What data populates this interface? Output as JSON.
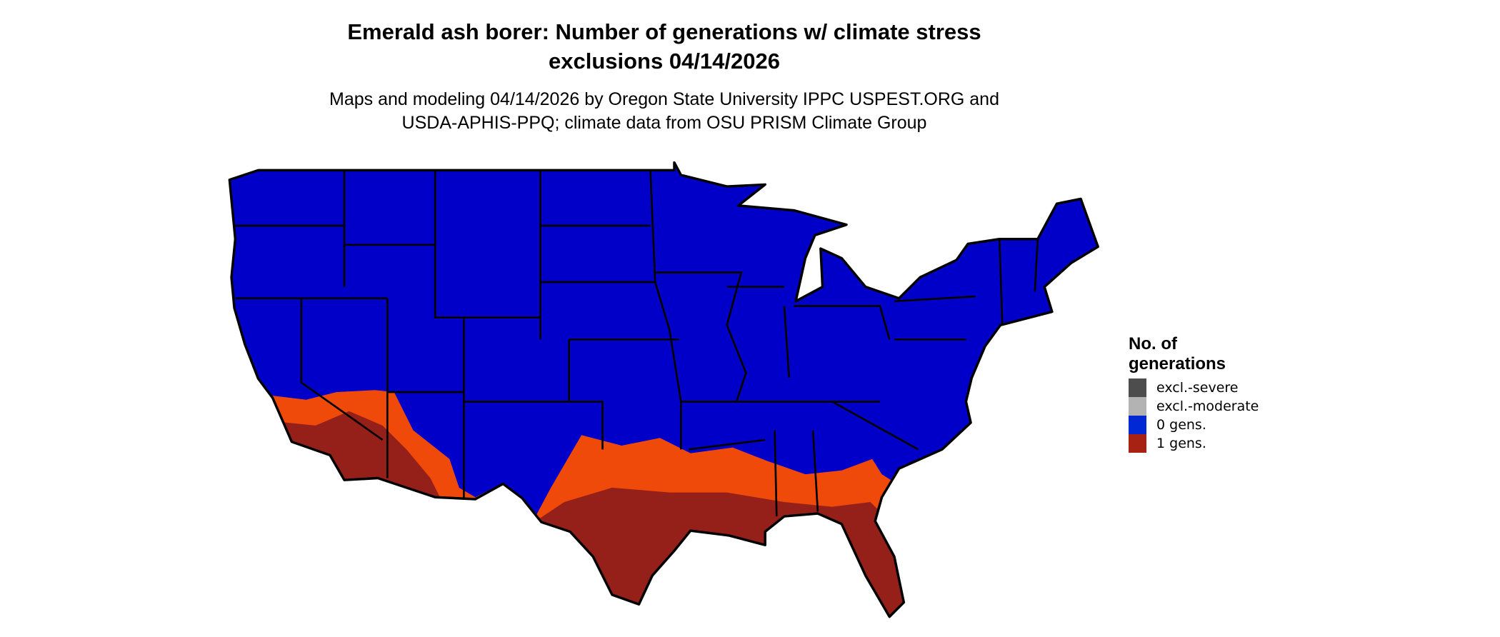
{
  "title": {
    "line1": "Emerald ash borer: Number of generations w/ climate stress",
    "line2": "exclusions 04/14/2026"
  },
  "subtitle": {
    "line1": "Maps and modeling 04/14/2026 by Oregon State University IPPC USPEST.ORG and",
    "line2": "USDA-APHIS-PPQ; climate data from OSU PRISM Climate Group"
  },
  "legend": {
    "title_line1": "No. of",
    "title_line2": "generations",
    "items": [
      {
        "label": "excl.-severe",
        "color": "#4d4d4d"
      },
      {
        "label": "excl.-moderate",
        "color": "#b3b3b3"
      },
      {
        "label": "0 gens.",
        "color": "#0029d6"
      },
      {
        "label": "1 gens.",
        "color": "#a82214"
      }
    ]
  },
  "map_colors": {
    "zero_gens": "#0000c8",
    "one_gen_light": "#f04a0a",
    "one_gen_dark": "#8b1c1c",
    "borders": "#000000"
  }
}
